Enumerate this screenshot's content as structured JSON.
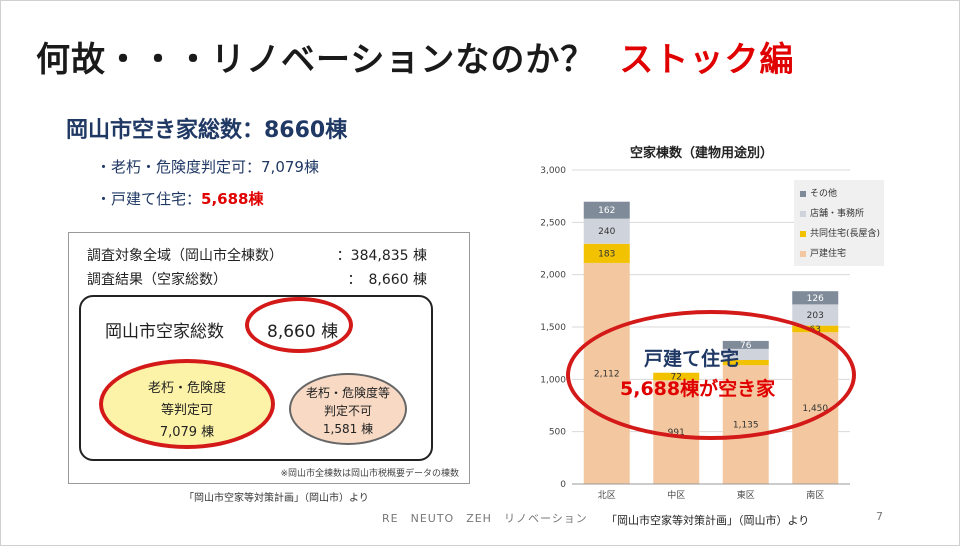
{
  "title": {
    "main": "何故・・・リノベーションなのか？",
    "accent": "ストック編"
  },
  "summary": {
    "heading": "岡山市空き家総数：8660棟",
    "bullet1": "・老朽・危険度判定可：7,079棟",
    "bullet2_prefix": "・戸建て住宅：",
    "bullet2_value": "5,688棟"
  },
  "survey": {
    "row1_label": "調査対象全域（岡山市全棟数）",
    "row1_value": "：384,835 棟",
    "row2_label": "調査結果（空家総数）",
    "row2_value": "：　8,660 棟",
    "total_label": "岡山市空家総数",
    "total_value": "8,660 棟",
    "ellipse1": {
      "line1": "老朽・危険度",
      "line2": "等判定可",
      "line3": "7,079 棟"
    },
    "ellipse2": {
      "line1": "老朽・危険度等",
      "line2": "判定不可",
      "line3": "1,581 棟"
    },
    "note": "※岡山市全棟数は岡山市税概要データの棟数",
    "source": "「岡山市空家等対策計画」（岡山市）より"
  },
  "chart_data": {
    "type": "bar",
    "stacked": true,
    "title": "空家棟数（建物用途別）",
    "categories": [
      "北区",
      "中区",
      "東区",
      "南区"
    ],
    "ylim": [
      0,
      3000
    ],
    "yticks": [
      "0",
      "500",
      "1,000",
      "1,500",
      "2,000",
      "2,500",
      "3,000"
    ],
    "legend_position": "top-right",
    "series": [
      {
        "name": "戸建住宅",
        "color": "#f3c8a0",
        "values": [
          2112,
          991,
          1135,
          1450
        ],
        "labels": [
          "2,112",
          "991",
          "1,135",
          "1,450"
        ]
      },
      {
        "name": "共同住宅(長屋含)",
        "color": "#f2c200",
        "values": [
          183,
          72,
          50,
          63
        ],
        "labels": [
          "183",
          "72",
          "",
          "63"
        ]
      },
      {
        "name": "店舗・事務所",
        "color": "#cfd3dc",
        "values": [
          240,
          0,
          106,
          203
        ],
        "labels": [
          "240",
          "",
          "",
          "203"
        ]
      },
      {
        "name": "その他",
        "color": "#7f8b99",
        "values": [
          162,
          0,
          76,
          126
        ],
        "labels": [
          "162",
          "",
          "76",
          "126"
        ]
      }
    ],
    "legend_order": [
      "その他",
      "店舗・事務所",
      "共同住宅(長屋含)",
      "戸建住宅"
    ],
    "source": "「岡山市空家等対策計画」（岡山市）より"
  },
  "callout": {
    "line1": "戸建て住宅",
    "line2": "5,688棟が空き家"
  },
  "footer": {
    "text": "RE　NEUTO　ZEH　リノベーション",
    "page": "7"
  }
}
